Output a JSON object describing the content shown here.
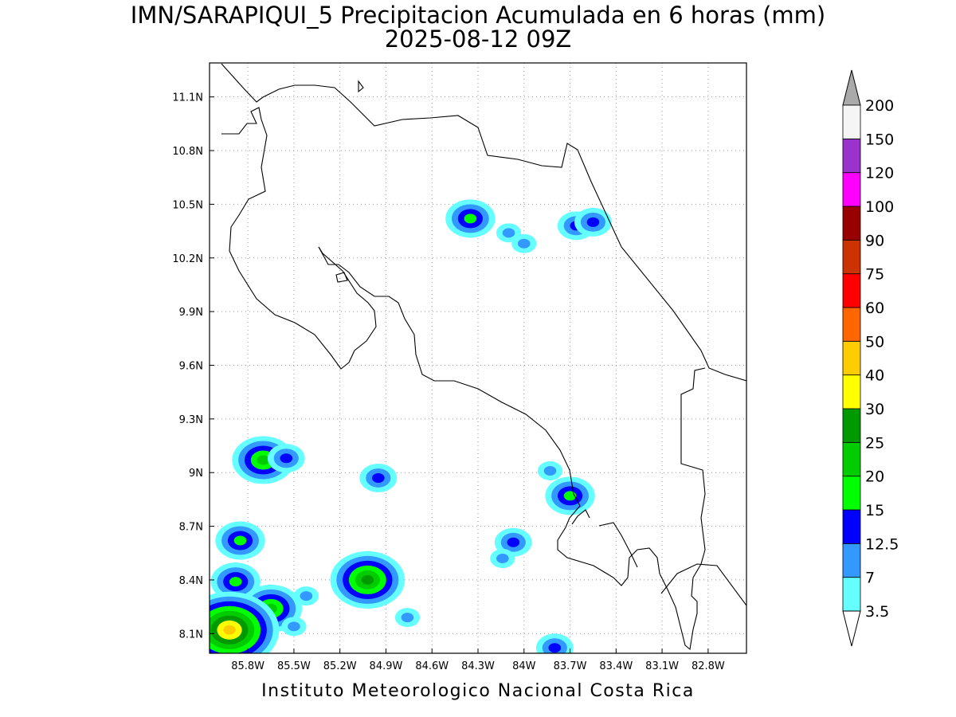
{
  "title": {
    "line1": "IMN/SARAPIQUI_5 Precipitacion Acumulada en 6 horas (mm)",
    "line2": "2025-08-12 09Z"
  },
  "footer": "Instituto Meteorologico Nacional Costa Rica",
  "map": {
    "lon_range": [
      -86.05,
      -82.55
    ],
    "lat_range": [
      7.99,
      11.29
    ],
    "lat_ticks": [
      "11.1N",
      "10.8N",
      "10.5N",
      "10.2N",
      "9.9N",
      "9.6N",
      "9.3N",
      "9N",
      "8.7N",
      "8.4N",
      "8.1N"
    ],
    "lat_values": [
      11.1,
      10.8,
      10.5,
      10.2,
      9.9,
      9.6,
      9.3,
      9.0,
      8.7,
      8.4,
      8.1
    ],
    "lon_ticks": [
      "85.8W",
      "85.5W",
      "85.2W",
      "84.9W",
      "84.6W",
      "84.3W",
      "84W",
      "83.7W",
      "83.4W",
      "83.1W",
      "82.8W"
    ],
    "lon_values": [
      -85.8,
      -85.5,
      -85.2,
      -84.9,
      -84.6,
      -84.3,
      -84.0,
      -83.7,
      -83.4,
      -83.1,
      -82.8
    ],
    "grid": "dotted"
  },
  "colorbar": {
    "labels": [
      "3.5",
      "7",
      "12.5",
      "15",
      "20",
      "25",
      "30",
      "40",
      "50",
      "60",
      "75",
      "90",
      "100",
      "120",
      "150",
      "200"
    ],
    "colors": [
      "#66ffff",
      "#3399ff",
      "#0000ff",
      "#00ff00",
      "#00cc00",
      "#009900",
      "#ffff00",
      "#ffcc00",
      "#ff6600",
      "#ff0000",
      "#cc3300",
      "#990000",
      "#ff00ff",
      "#9933cc",
      "#f5f5f5"
    ],
    "below_color": "#ffffff",
    "above_color": "#aaaaaa"
  },
  "precip_cells": [
    {
      "lon": -84.35,
      "lat": 10.42,
      "level": 3
    },
    {
      "lon": -84.1,
      "lat": 10.34,
      "level": 1
    },
    {
      "lon": -84.0,
      "lat": 10.28,
      "level": 1
    },
    {
      "lon": -83.66,
      "lat": 10.38,
      "level": 2
    },
    {
      "lon": -83.55,
      "lat": 10.4,
      "level": 2
    },
    {
      "lon": -85.7,
      "lat": 9.07,
      "level": 4
    },
    {
      "lon": -85.55,
      "lat": 9.08,
      "level": 2
    },
    {
      "lon": -84.95,
      "lat": 8.97,
      "level": 2
    },
    {
      "lon": -83.83,
      "lat": 9.01,
      "level": 1
    },
    {
      "lon": -83.7,
      "lat": 8.87,
      "level": 3
    },
    {
      "lon": -84.07,
      "lat": 8.61,
      "level": 2
    },
    {
      "lon": -84.14,
      "lat": 8.52,
      "level": 1
    },
    {
      "lon": -85.02,
      "lat": 8.4,
      "level": 5
    },
    {
      "lon": -85.85,
      "lat": 8.62,
      "level": 3
    },
    {
      "lon": -85.88,
      "lat": 8.39,
      "level": 3
    },
    {
      "lon": -85.65,
      "lat": 8.24,
      "level": 4
    },
    {
      "lon": -85.92,
      "lat": 8.12,
      "level": 7
    },
    {
      "lon": -85.42,
      "lat": 8.31,
      "level": 1
    },
    {
      "lon": -85.5,
      "lat": 8.14,
      "level": 1
    },
    {
      "lon": -84.76,
      "lat": 8.19,
      "level": 1
    },
    {
      "lon": -83.8,
      "lat": 8.02,
      "level": 2
    }
  ]
}
